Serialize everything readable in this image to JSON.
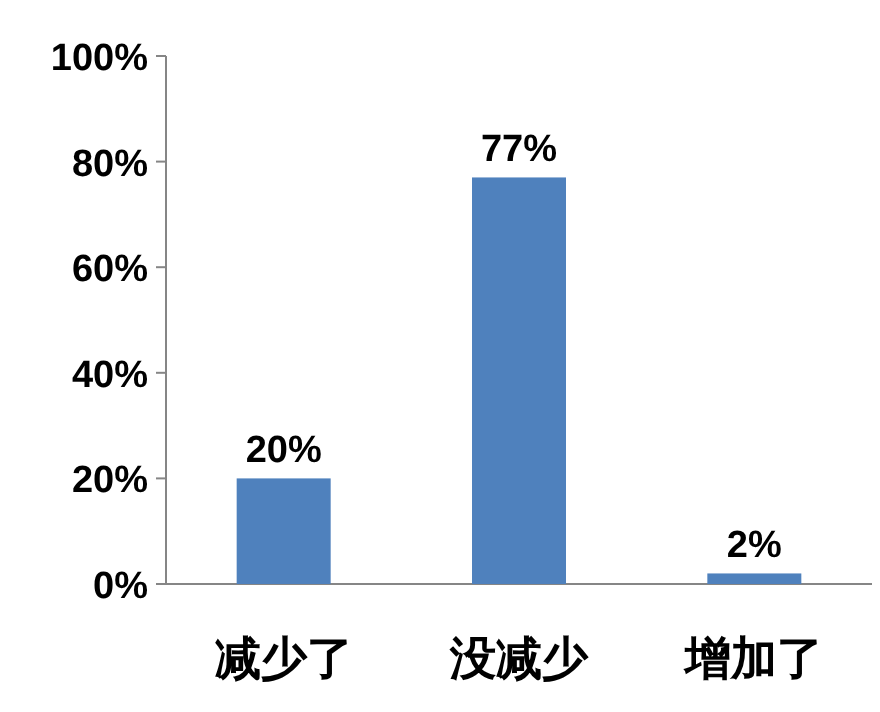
{
  "chart_data": {
    "type": "bar",
    "categories": [
      "减少了",
      "没减少",
      "增加了"
    ],
    "values": [
      20,
      77,
      2
    ],
    "value_labels": [
      "20%",
      "77%",
      "2%"
    ],
    "color": "#4f81bd",
    "ylim": [
      0,
      100
    ],
    "yticks": [
      {
        "value": 0,
        "label": "0%"
      },
      {
        "value": 20,
        "label": "20%"
      },
      {
        "value": 40,
        "label": "40%"
      },
      {
        "value": 60,
        "label": "60%"
      },
      {
        "value": 80,
        "label": "80%"
      },
      {
        "value": 100,
        "label": "100%"
      }
    ],
    "grid": false
  }
}
